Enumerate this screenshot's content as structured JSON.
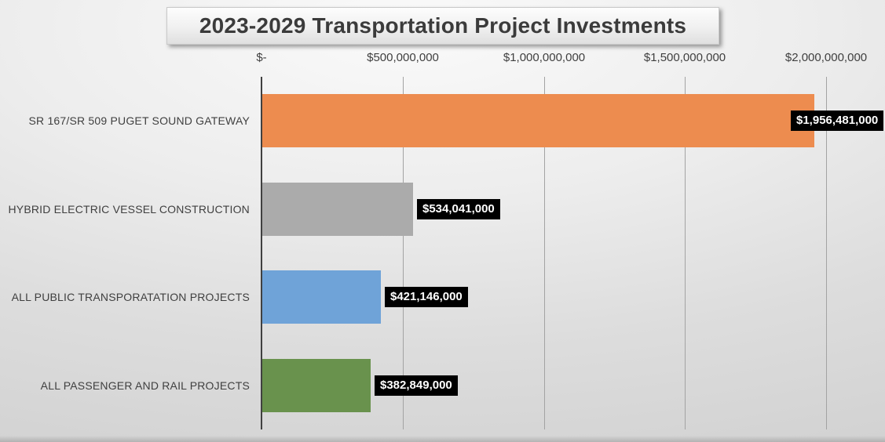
{
  "title": "2023-2029 Transportation Project Investments",
  "chart_data": {
    "type": "bar",
    "orientation": "horizontal",
    "title": "2023-2029 Transportation Project Investments",
    "categories": [
      "SR 167/SR 509 PUGET SOUND GATEWAY",
      "HYBRID ELECTRIC VESSEL CONSTRUCTION",
      "ALL PUBLIC TRANSPORATATION PROJECTS",
      "ALL PASSENGER AND RAIL PROJECTS"
    ],
    "values": [
      1956481000,
      534041000,
      421146000,
      382849000
    ],
    "value_labels": [
      "$1,956,481,000",
      "$534,041,000",
      "$421,146,000",
      "$382,849,000"
    ],
    "bar_colors": [
      "#ED8C4F",
      "#ABABAB",
      "#6FA3D8",
      "#69924D"
    ],
    "value_label_style": {
      "background": "#000000",
      "text_color": "#FFFFFF"
    },
    "x_axis": {
      "min": 0,
      "max": 2000000000,
      "ticks": [
        0,
        500000000,
        1000000000,
        1500000000,
        2000000000
      ],
      "tick_labels": [
        "$-",
        "$500,000,000",
        "$1,000,000,000",
        "$1,500,000,000",
        "$2,000,000,000"
      ],
      "position": "top"
    },
    "grid": true,
    "legend": false
  }
}
